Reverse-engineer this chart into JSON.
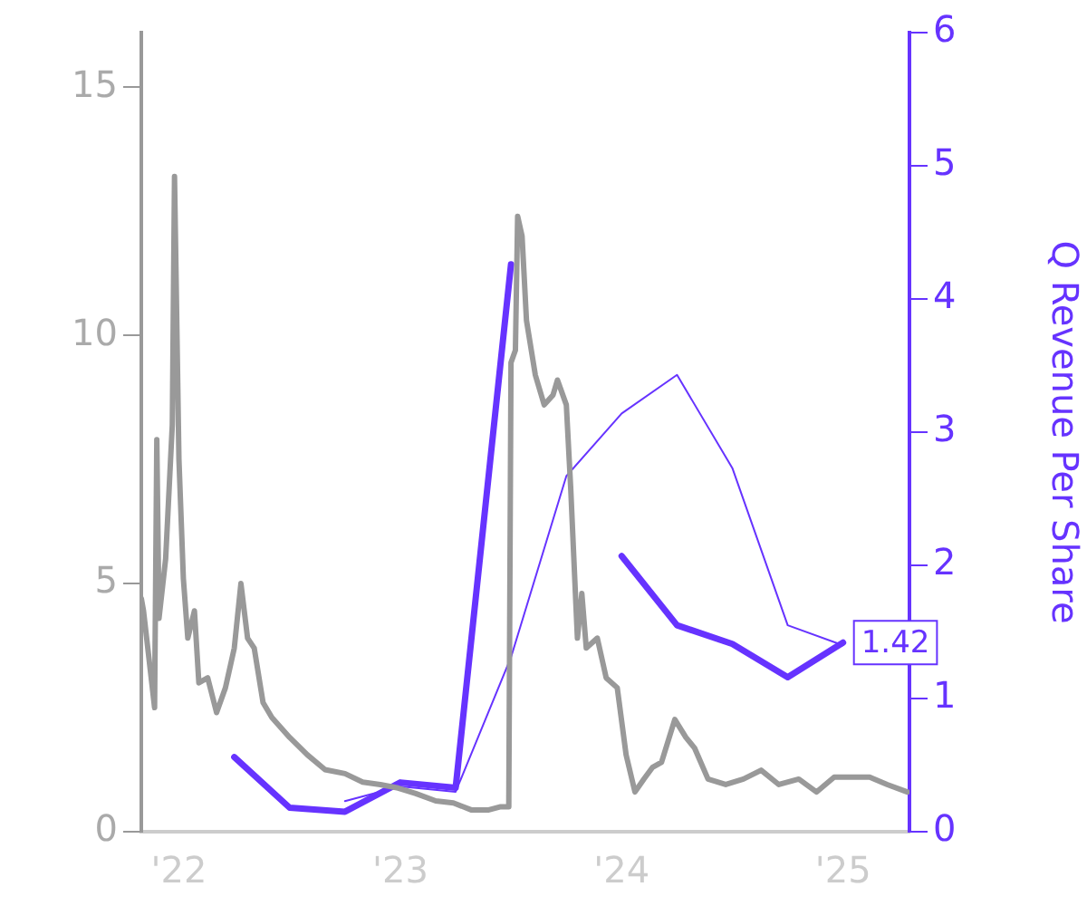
{
  "chart_data": {
    "type": "line",
    "y2label": "Q Revenue Per Share",
    "xlim": [
      2021.83,
      2025.3
    ],
    "xticks": [
      {
        "value": 2022,
        "label": "'22"
      },
      {
        "value": 2023,
        "label": "'23"
      },
      {
        "value": 2024,
        "label": "'24"
      },
      {
        "value": 2025,
        "label": "'25"
      }
    ],
    "ylim": [
      0,
      16.1
    ],
    "yticks": [
      0,
      5,
      10,
      15
    ],
    "y2lim": [
      0,
      6
    ],
    "y2ticks": [
      0,
      1,
      2,
      3,
      4,
      5,
      6
    ],
    "grid": false,
    "legend": false,
    "marker": "none",
    "series": [
      {
        "color": "#999999",
        "axis": "y",
        "x": [
          2021.83,
          2021.84,
          2021.89,
          2021.9,
          2021.91,
          2021.94,
          2021.97,
          2021.98,
          2022.0,
          2022.02,
          2022.04,
          2022.07,
          2022.09,
          2022.13,
          2022.17,
          2022.21,
          2022.25,
          2022.28,
          2022.31,
          2022.34,
          2022.38,
          2022.42,
          2022.5,
          2022.58,
          2022.66,
          2022.75,
          2022.83,
          2022.91,
          2022.99,
          2023.07,
          2023.16,
          2023.24,
          2023.32,
          2023.4,
          2023.45,
          2023.49,
          2023.5,
          2023.52,
          2023.53,
          2023.55,
          2023.57,
          2023.61,
          2023.65,
          2023.69,
          2023.71,
          2023.75,
          2023.77,
          2023.8,
          2023.82,
          2023.84,
          2023.89,
          2023.93,
          2023.98,
          2024.02,
          2024.06,
          2024.1,
          2024.14,
          2024.18,
          2024.24,
          2024.29,
          2024.33,
          2024.39,
          2024.47,
          2024.55,
          2024.63,
          2024.71,
          2024.8,
          2024.88,
          2024.96,
          2025.04,
          2025.12,
          2025.2,
          2025.29
        ],
        "values": [
          4.7,
          4.45,
          2.5,
          7.9,
          4.3,
          5.5,
          8.2,
          13.2,
          7.5,
          5.1,
          3.9,
          4.45,
          3.0,
          3.1,
          2.4,
          2.9,
          3.7,
          5.0,
          3.9,
          3.7,
          2.6,
          2.3,
          1.9,
          1.55,
          1.25,
          1.17,
          1.0,
          0.95,
          0.88,
          0.77,
          0.62,
          0.58,
          0.44,
          0.44,
          0.5,
          0.5,
          9.45,
          9.7,
          12.4,
          12.0,
          10.3,
          9.2,
          8.6,
          8.8,
          9.1,
          8.6,
          6.9,
          3.9,
          4.8,
          3.7,
          3.9,
          3.1,
          2.9,
          1.55,
          0.8,
          1.06,
          1.3,
          1.4,
          2.26,
          1.9,
          1.68,
          1.06,
          0.95,
          1.06,
          1.24,
          0.95,
          1.06,
          0.8,
          1.1,
          1.1,
          1.1,
          0.95,
          0.8
        ]
      },
      {
        "color": "#6633ff",
        "axis": "y2",
        "x": [
          2022.25,
          2022.5,
          2022.75,
          2023.0,
          2023.25,
          2023.5,
          2023.75,
          2024.0,
          2024.25,
          2024.5,
          2024.75,
          2025.0
        ],
        "values": [
          0.56,
          0.18,
          0.15,
          0.37,
          0.33,
          4.26,
          null,
          2.07,
          1.55,
          1.41,
          1.16,
          1.42
        ],
        "value_labels": [
          null,
          null,
          null,
          null,
          null,
          null,
          null,
          null,
          null,
          null,
          null,
          "1.42"
        ]
      },
      {
        "color": "#6633ff",
        "axis": "y2",
        "x": [
          2022.75,
          2023.0,
          2023.25,
          2023.5,
          2023.75,
          2024.0,
          2024.25,
          2024.5,
          2024.75,
          2025.0
        ],
        "values": [
          0.23,
          0.34,
          0.3,
          1.31,
          2.67,
          3.14,
          3.43,
          2.73,
          1.55,
          1.4
        ]
      }
    ]
  }
}
